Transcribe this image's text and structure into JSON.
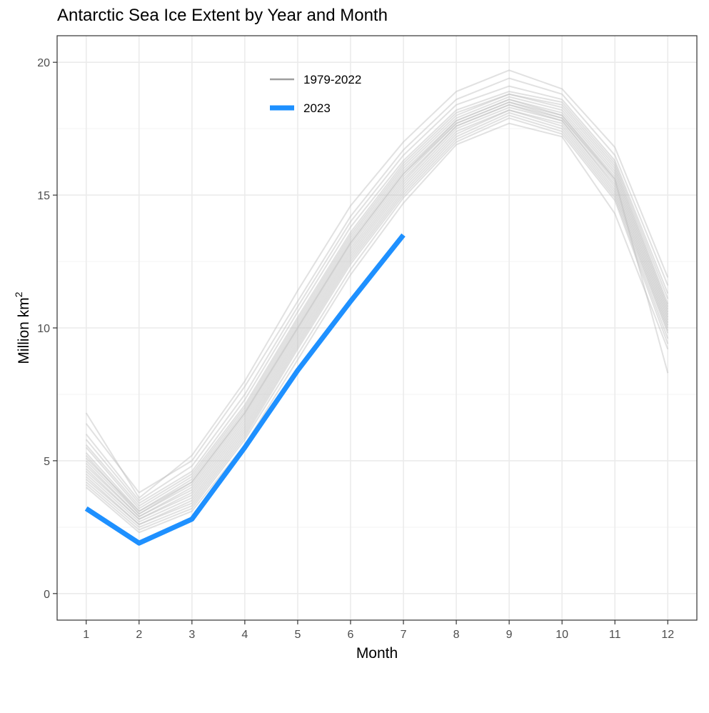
{
  "chart_data": {
    "type": "line",
    "title": "Antarctic Sea Ice Extent by Year and Month",
    "xlabel": "Month",
    "ylabel": "Million km",
    "ylabel_superscript": "2",
    "xlim": [
      0.45,
      12.55
    ],
    "ylim": [
      -1,
      21
    ],
    "x_ticks": [
      1,
      2,
      3,
      4,
      5,
      6,
      7,
      8,
      9,
      10,
      11,
      12
    ],
    "y_ticks": [
      0,
      5,
      10,
      15,
      20
    ],
    "grid": true,
    "legend": "top-center",
    "colors": {
      "historical": "#bdbdbd",
      "historical_legend": "#9e9e9e",
      "current": "#1e90ff",
      "grid": "#ebebeb",
      "panel_border": "#333333"
    },
    "legend_entries": [
      {
        "label": "1979-2022",
        "color": "#9e9e9e"
      },
      {
        "label": "2023",
        "color": "#1e90ff"
      }
    ],
    "series": [
      {
        "name": "2023",
        "x": [
          1,
          2,
          3,
          4,
          5,
          6,
          7
        ],
        "values": [
          3.2,
          1.9,
          2.8,
          5.5,
          8.4,
          11.0,
          13.5
        ]
      }
    ],
    "historical_series": [
      {
        "x": [
          1,
          2,
          3,
          4,
          5,
          6,
          7,
          8,
          9,
          10,
          11,
          12
        ],
        "values": [
          6.8,
          3.6,
          5.2,
          8.0,
          11.4,
          14.6,
          17.0,
          18.9,
          19.7,
          19.0,
          16.8,
          11.9
        ]
      },
      {
        "x": [
          1,
          2,
          3,
          4,
          5,
          6,
          7,
          8,
          9,
          10,
          11,
          12
        ],
        "values": [
          6.4,
          3.8,
          5.0,
          7.8,
          11.0,
          14.2,
          16.7,
          18.6,
          19.4,
          18.8,
          16.5,
          11.6
        ]
      },
      {
        "x": [
          1,
          2,
          3,
          4,
          5,
          6,
          7,
          8,
          9,
          10,
          11,
          12
        ],
        "values": [
          6.0,
          3.5,
          4.8,
          7.5,
          10.8,
          14.0,
          16.5,
          18.4,
          19.1,
          18.6,
          16.3,
          11.3
        ]
      },
      {
        "x": [
          1,
          2,
          3,
          4,
          5,
          6,
          7,
          8,
          9,
          10,
          11,
          12
        ],
        "values": [
          5.8,
          3.4,
          4.6,
          7.3,
          10.6,
          13.8,
          16.3,
          18.2,
          18.9,
          18.5,
          16.2,
          11.1
        ]
      },
      {
        "x": [
          1,
          2,
          3,
          4,
          5,
          6,
          7,
          8,
          9,
          10,
          11,
          12
        ],
        "values": [
          5.6,
          3.3,
          4.5,
          7.1,
          10.4,
          13.6,
          16.2,
          18.1,
          18.8,
          18.4,
          16.1,
          10.9
        ]
      },
      {
        "x": [
          1,
          2,
          3,
          4,
          5,
          6,
          7,
          8,
          9,
          10,
          11,
          12
        ],
        "values": [
          5.5,
          3.2,
          4.4,
          7.0,
          10.3,
          13.5,
          16.1,
          18.0,
          18.8,
          18.3,
          16.0,
          10.8
        ]
      },
      {
        "x": [
          1,
          2,
          3,
          4,
          5,
          6,
          7,
          8,
          9,
          10,
          11,
          12
        ],
        "values": [
          5.3,
          3.1,
          4.3,
          6.9,
          10.2,
          13.4,
          16.0,
          17.9,
          18.7,
          18.2,
          15.9,
          10.7
        ]
      },
      {
        "x": [
          1,
          2,
          3,
          4,
          5,
          6,
          7,
          8,
          9,
          10,
          11,
          12
        ],
        "values": [
          5.2,
          3.0,
          4.2,
          6.8,
          10.1,
          13.3,
          15.9,
          17.8,
          18.6,
          18.1,
          15.8,
          10.6
        ]
      },
      {
        "x": [
          1,
          2,
          3,
          4,
          5,
          6,
          7,
          8,
          9,
          10,
          11,
          12
        ],
        "values": [
          5.0,
          3.0,
          4.1,
          6.7,
          10.0,
          13.2,
          15.8,
          17.8,
          18.6,
          18.0,
          15.7,
          10.5
        ]
      },
      {
        "x": [
          1,
          2,
          3,
          4,
          5,
          6,
          7,
          8,
          9,
          10,
          11,
          12
        ],
        "values": [
          4.9,
          2.9,
          4.0,
          6.6,
          9.9,
          13.1,
          15.7,
          17.7,
          18.5,
          18.0,
          15.6,
          10.4
        ]
      },
      {
        "x": [
          1,
          2,
          3,
          4,
          5,
          6,
          7,
          8,
          9,
          10,
          11,
          12
        ],
        "values": [
          4.8,
          2.9,
          3.9,
          6.5,
          9.8,
          13.0,
          15.6,
          17.6,
          18.4,
          17.9,
          15.5,
          10.3
        ]
      },
      {
        "x": [
          1,
          2,
          3,
          4,
          5,
          6,
          7,
          8,
          9,
          10,
          11,
          12
        ],
        "values": [
          4.7,
          2.8,
          3.8,
          6.4,
          9.7,
          12.9,
          15.5,
          17.6,
          18.4,
          17.8,
          15.4,
          10.2
        ]
      },
      {
        "x": [
          1,
          2,
          3,
          4,
          5,
          6,
          7,
          8,
          9,
          10,
          11,
          12
        ],
        "values": [
          4.6,
          2.8,
          3.7,
          6.3,
          9.6,
          12.8,
          15.4,
          17.5,
          18.3,
          17.8,
          15.3,
          10.1
        ]
      },
      {
        "x": [
          1,
          2,
          3,
          4,
          5,
          6,
          7,
          8,
          9,
          10,
          11,
          12
        ],
        "values": [
          4.5,
          2.7,
          3.6,
          6.2,
          9.5,
          12.7,
          15.3,
          17.4,
          18.2,
          17.7,
          15.2,
          10.0
        ]
      },
      {
        "x": [
          1,
          2,
          3,
          4,
          5,
          6,
          7,
          8,
          9,
          10,
          11,
          12
        ],
        "values": [
          4.4,
          2.6,
          3.5,
          6.1,
          9.4,
          12.6,
          15.2,
          17.3,
          18.2,
          17.6,
          15.1,
          9.9
        ]
      },
      {
        "x": [
          1,
          2,
          3,
          4,
          5,
          6,
          7,
          8,
          9,
          10,
          11,
          12
        ],
        "values": [
          4.3,
          2.6,
          3.4,
          6.0,
          9.3,
          12.5,
          15.1,
          17.2,
          18.1,
          17.5,
          15.0,
          9.8
        ]
      },
      {
        "x": [
          1,
          2,
          3,
          4,
          5,
          6,
          7,
          8,
          9,
          10,
          11,
          12
        ],
        "values": [
          4.2,
          2.5,
          3.3,
          5.9,
          9.2,
          12.4,
          15.0,
          17.1,
          18.0,
          17.4,
          14.9,
          9.6
        ]
      },
      {
        "x": [
          1,
          2,
          3,
          4,
          5,
          6,
          7,
          8,
          9,
          10,
          11,
          12
        ],
        "values": [
          4.1,
          2.4,
          3.2,
          5.8,
          9.0,
          12.2,
          14.9,
          17.0,
          17.9,
          17.3,
          14.8,
          9.4
        ]
      },
      {
        "x": [
          1,
          2,
          3,
          4,
          5,
          6,
          7,
          8,
          9,
          10,
          11,
          12
        ],
        "values": [
          4.0,
          2.3,
          3.1,
          5.6,
          8.8,
          12.0,
          14.7,
          16.9,
          17.7,
          17.2,
          14.3,
          9.2
        ]
      },
      {
        "x": [
          1,
          2,
          3,
          4,
          5,
          6,
          7,
          8,
          9,
          10,
          11,
          12
        ],
        "values": [
          5.1,
          3.1,
          4.2,
          6.8,
          10.0,
          13.2,
          15.8,
          17.7,
          18.5,
          17.9,
          15.6,
          8.3
        ]
      }
    ]
  }
}
